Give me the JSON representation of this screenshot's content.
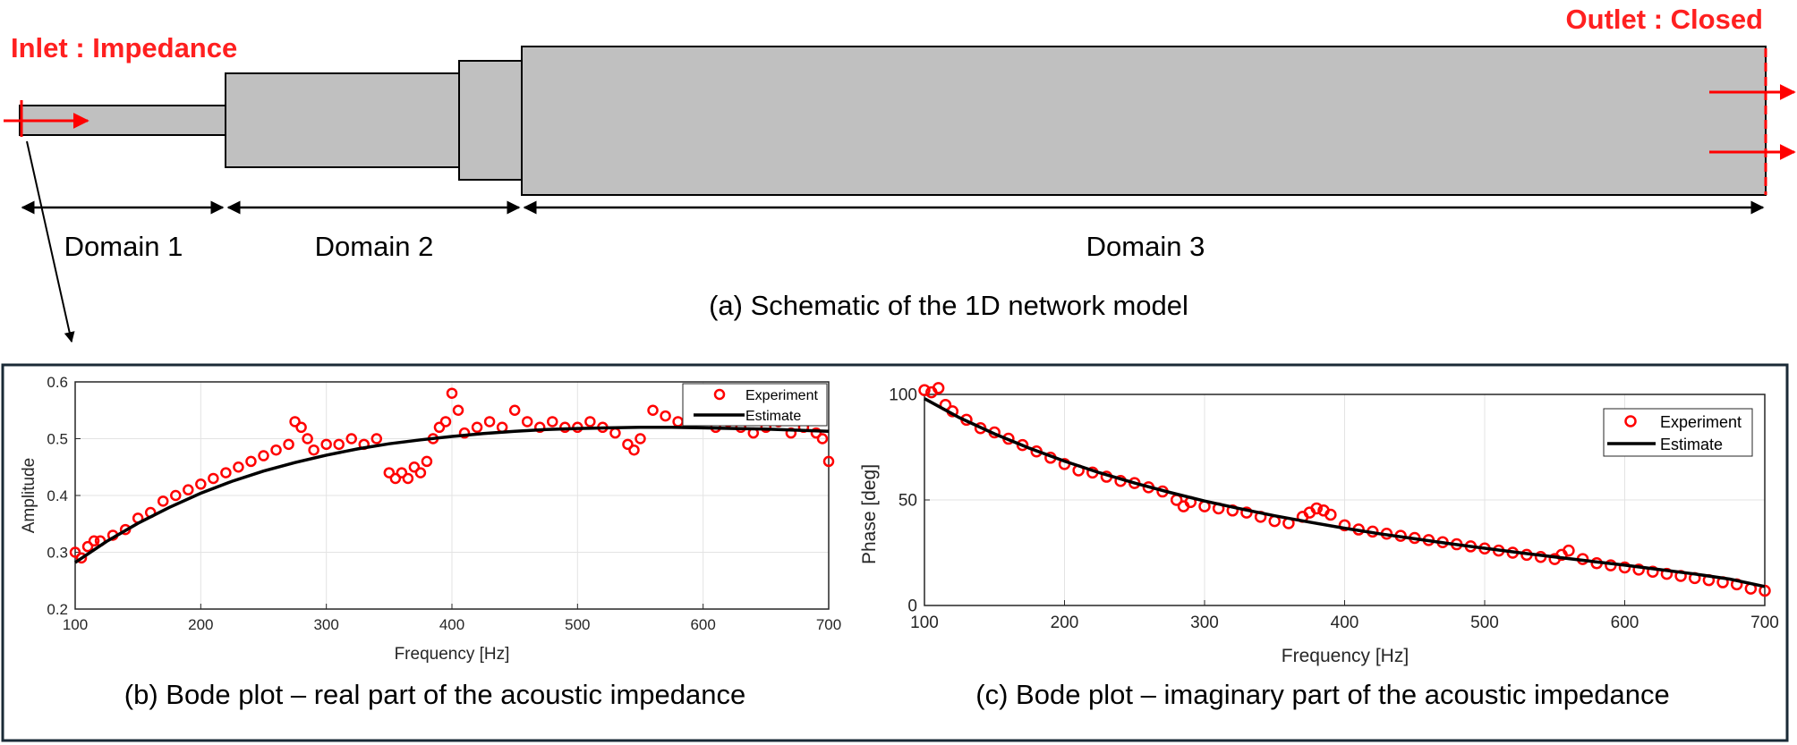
{
  "schematic": {
    "inlet_label": "Inlet : Impedance",
    "outlet_label": "Outlet : Closed",
    "domains": [
      "Domain 1",
      "Domain 2",
      "Domain 3"
    ],
    "caption": "(a) Schematic of the 1D network model",
    "colors": {
      "duct_fill": "#c0c0c0",
      "boundary": "#ff0000",
      "outline": "#000000"
    }
  },
  "chart_data": [
    {
      "type": "line",
      "caption": "(b) Bode plot – real part of the acoustic impedance",
      "xlabel": "Frequency [Hz]",
      "ylabel": "Amplitude",
      "xlim": [
        100,
        700
      ],
      "ylim": [
        0.2,
        0.6
      ],
      "xticks": [
        100,
        200,
        300,
        400,
        500,
        600,
        700
      ],
      "yticks": [
        0.2,
        0.3,
        0.4,
        0.5,
        0.6
      ],
      "grid": true,
      "legend_position": "top-right",
      "series": [
        {
          "name": "Experiment",
          "style": "scatter",
          "marker": "circle",
          "color": "#ff0000",
          "x": [
            100,
            105,
            110,
            115,
            120,
            130,
            140,
            150,
            160,
            170,
            180,
            190,
            200,
            210,
            220,
            230,
            240,
            250,
            260,
            270,
            275,
            280,
            285,
            290,
            300,
            310,
            320,
            330,
            340,
            350,
            355,
            360,
            365,
            370,
            375,
            380,
            385,
            390,
            395,
            400,
            405,
            410,
            420,
            430,
            440,
            450,
            460,
            470,
            480,
            490,
            500,
            510,
            520,
            530,
            540,
            545,
            550,
            560,
            570,
            580,
            590,
            600,
            610,
            620,
            630,
            640,
            650,
            660,
            670,
            680,
            690,
            695,
            700
          ],
          "y": [
            0.3,
            0.29,
            0.31,
            0.32,
            0.32,
            0.33,
            0.34,
            0.36,
            0.37,
            0.39,
            0.4,
            0.41,
            0.42,
            0.43,
            0.44,
            0.45,
            0.46,
            0.47,
            0.48,
            0.49,
            0.53,
            0.52,
            0.5,
            0.48,
            0.49,
            0.49,
            0.5,
            0.49,
            0.5,
            0.44,
            0.43,
            0.44,
            0.43,
            0.45,
            0.44,
            0.46,
            0.5,
            0.52,
            0.53,
            0.58,
            0.55,
            0.51,
            0.52,
            0.53,
            0.52,
            0.55,
            0.53,
            0.52,
            0.53,
            0.52,
            0.52,
            0.53,
            0.52,
            0.51,
            0.49,
            0.48,
            0.5,
            0.55,
            0.54,
            0.53,
            0.53,
            0.54,
            0.52,
            0.53,
            0.52,
            0.51,
            0.52,
            0.53,
            0.51,
            0.52,
            0.51,
            0.5,
            0.46
          ]
        },
        {
          "name": "Estimate",
          "style": "line",
          "color": "#000000",
          "x": [
            100,
            125,
            150,
            175,
            200,
            225,
            250,
            275,
            300,
            325,
            350,
            375,
            400,
            425,
            450,
            475,
            500,
            525,
            550,
            575,
            600,
            625,
            650,
            675,
            700
          ],
          "y": [
            0.282,
            0.319,
            0.351,
            0.379,
            0.404,
            0.425,
            0.443,
            0.458,
            0.471,
            0.482,
            0.491,
            0.498,
            0.504,
            0.509,
            0.513,
            0.516,
            0.518,
            0.519,
            0.52,
            0.52,
            0.519,
            0.518,
            0.517,
            0.515,
            0.513
          ]
        }
      ]
    },
    {
      "type": "line",
      "caption": "(c) Bode plot – imaginary part of the acoustic impedance",
      "xlabel": "Frequency [Hz]",
      "ylabel": "Phase [deg]",
      "xlim": [
        100,
        700
      ],
      "ylim": [
        0,
        100
      ],
      "xticks": [
        100,
        200,
        300,
        400,
        500,
        600,
        700
      ],
      "yticks": [
        0,
        50,
        100
      ],
      "grid": true,
      "legend_position": "top-right",
      "series": [
        {
          "name": "Experiment",
          "style": "scatter",
          "marker": "circle",
          "color": "#ff0000",
          "x": [
            100,
            105,
            110,
            115,
            120,
            130,
            140,
            150,
            160,
            170,
            180,
            190,
            200,
            210,
            220,
            230,
            240,
            250,
            260,
            270,
            280,
            285,
            290,
            300,
            310,
            320,
            330,
            340,
            350,
            360,
            370,
            375,
            380,
            385,
            390,
            400,
            410,
            420,
            430,
            440,
            450,
            460,
            470,
            480,
            490,
            500,
            510,
            520,
            530,
            540,
            550,
            555,
            560,
            570,
            580,
            590,
            600,
            610,
            620,
            630,
            640,
            650,
            660,
            670,
            680,
            690,
            700
          ],
          "y": [
            102,
            101,
            103,
            95,
            92,
            88,
            84,
            82,
            79,
            76,
            73,
            70,
            67,
            64,
            63,
            61,
            59,
            58,
            56,
            54,
            50,
            47,
            49,
            47,
            46,
            45,
            44,
            42,
            40,
            39,
            42,
            44,
            46,
            45,
            43,
            38,
            36,
            35,
            34,
            33,
            32,
            31,
            30,
            29,
            28,
            27,
            26,
            25,
            24,
            23,
            22,
            24,
            26,
            22,
            20,
            19,
            18,
            17,
            16,
            15,
            14,
            13,
            12,
            11,
            10,
            8,
            7
          ]
        },
        {
          "name": "Estimate",
          "style": "line",
          "color": "#000000",
          "x": [
            100,
            125,
            150,
            175,
            200,
            225,
            250,
            275,
            300,
            325,
            350,
            375,
            400,
            425,
            450,
            475,
            500,
            525,
            550,
            575,
            600,
            625,
            650,
            675,
            700
          ],
          "y": [
            98.0,
            89.0,
            81.3,
            74.5,
            68.4,
            62.9,
            58.0,
            53.6,
            49.5,
            45.9,
            42.5,
            39.5,
            36.6,
            34.0,
            31.6,
            29.3,
            27.1,
            25.0,
            23.0,
            21.0,
            19.1,
            17.0,
            14.9,
            12.5,
            9.0
          ]
        }
      ]
    }
  ]
}
